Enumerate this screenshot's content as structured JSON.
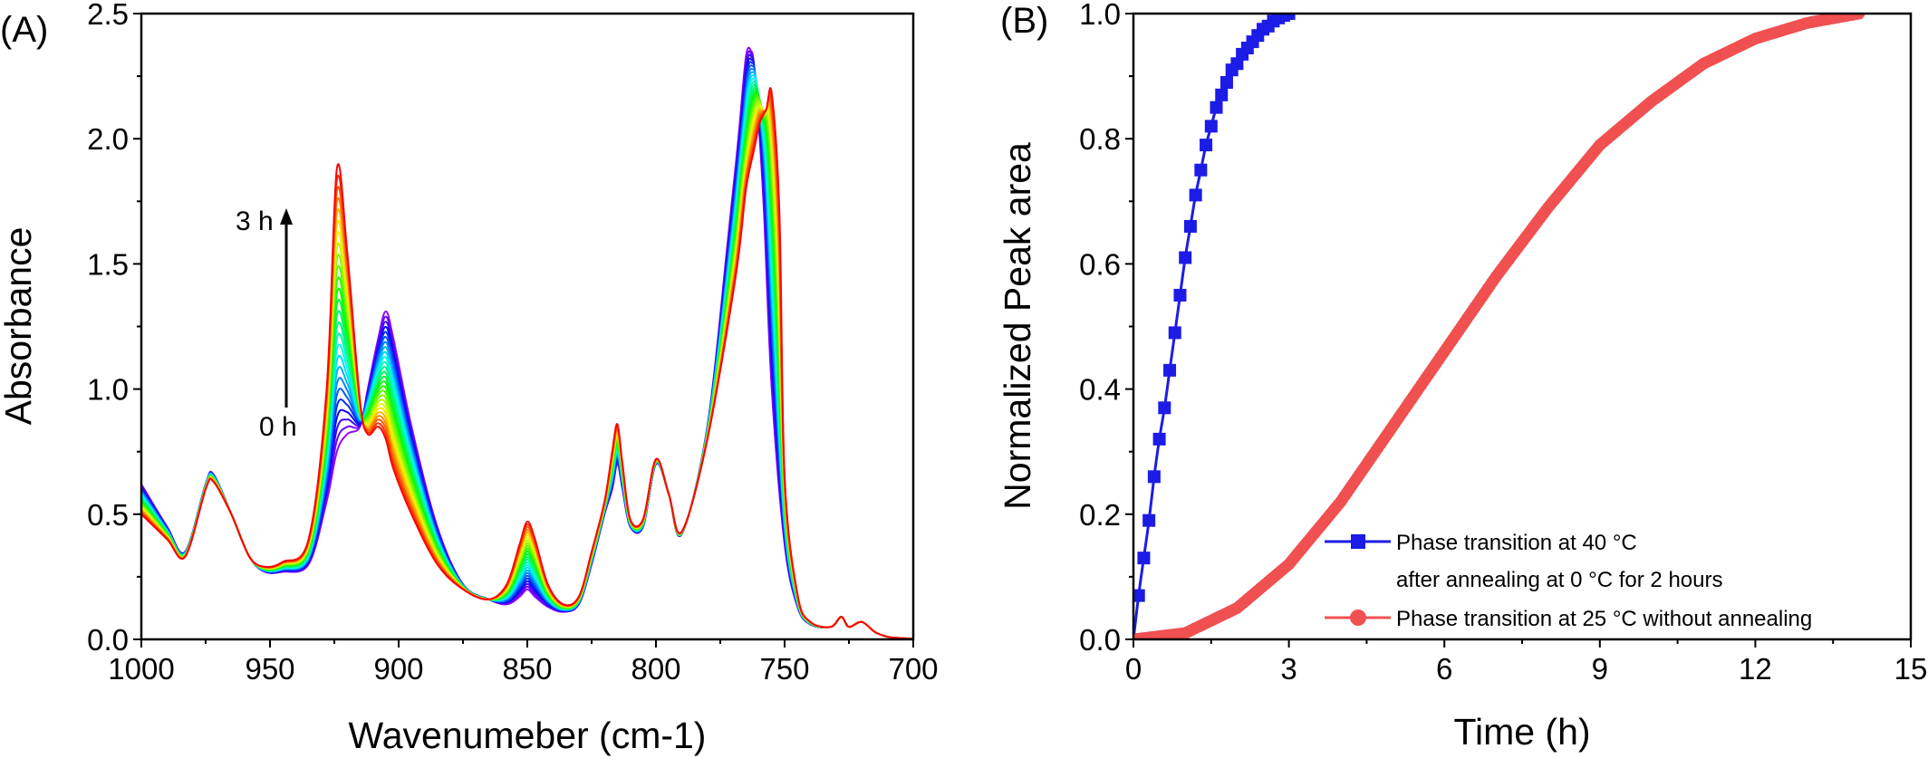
{
  "chart_data": [
    {
      "panel": "(A)",
      "type": "line",
      "xlabel": "Wavenumeber (cm-1)",
      "ylabel": "Absorbance",
      "xlim": [
        1000,
        700
      ],
      "ylim": [
        0,
        2.5
      ],
      "x_reversed": true,
      "xticks": [
        "1000",
        "950",
        "900",
        "850",
        "800",
        "750",
        "700"
      ],
      "yticks": [
        "0.0",
        "0.5",
        "1.0",
        "1.5",
        "2.0",
        "2.5"
      ],
      "annotations": {
        "arrow_top": "3 h",
        "arrow_bottom": "0 h"
      },
      "series_count": 26,
      "color_order": "purple (0 h) to red (3 h)",
      "start_spectrum": {
        "x": [
          1000,
          990,
          983,
          975,
          972,
          965,
          958,
          952,
          945,
          935,
          928,
          924,
          920,
          915,
          912,
          908,
          905,
          902,
          895,
          885,
          875,
          865,
          858,
          853,
          850,
          847,
          842,
          836,
          830,
          825,
          820,
          817,
          815,
          813,
          810,
          805,
          800,
          795,
          790,
          780,
          772,
          768,
          765,
          763,
          762,
          760,
          758,
          755,
          750,
          745,
          740,
          732,
          728,
          725,
          720,
          715,
          710,
          705,
          700
        ],
        "y": [
          0.62,
          0.45,
          0.35,
          0.62,
          0.66,
          0.5,
          0.33,
          0.27,
          0.27,
          0.3,
          0.55,
          0.75,
          0.82,
          0.85,
          1.0,
          1.2,
          1.31,
          1.2,
          0.85,
          0.45,
          0.22,
          0.16,
          0.14,
          0.17,
          0.2,
          0.17,
          0.13,
          0.11,
          0.14,
          0.3,
          0.5,
          0.6,
          0.7,
          0.6,
          0.45,
          0.45,
          0.7,
          0.58,
          0.42,
          0.85,
          1.6,
          2.0,
          2.33,
          2.35,
          2.3,
          2.05,
          1.7,
          1.0,
          0.38,
          0.13,
          0.06,
          0.05,
          0.09,
          0.05,
          0.07,
          0.03,
          0.01,
          0.005,
          0.003
        ]
      },
      "end_spectrum": {
        "x": [
          1000,
          990,
          983,
          975,
          972,
          965,
          958,
          952,
          945,
          935,
          928,
          924,
          920,
          915,
          912,
          908,
          905,
          902,
          895,
          885,
          875,
          865,
          858,
          853,
          850,
          847,
          842,
          836,
          830,
          825,
          820,
          817,
          815,
          813,
          810,
          805,
          800,
          795,
          790,
          780,
          772,
          768,
          765,
          763,
          762,
          760,
          758,
          755,
          750,
          745,
          740,
          732,
          728,
          725,
          720,
          715,
          710,
          705,
          700
        ],
        "y": [
          0.5,
          0.4,
          0.33,
          0.6,
          0.63,
          0.5,
          0.33,
          0.29,
          0.31,
          0.4,
          1.0,
          1.88,
          1.55,
          0.95,
          0.82,
          0.85,
          0.8,
          0.68,
          0.5,
          0.3,
          0.2,
          0.16,
          0.22,
          0.38,
          0.47,
          0.4,
          0.22,
          0.14,
          0.17,
          0.35,
          0.55,
          0.75,
          0.86,
          0.7,
          0.48,
          0.48,
          0.72,
          0.58,
          0.43,
          0.8,
          1.45,
          1.8,
          1.95,
          2.05,
          2.08,
          2.12,
          2.18,
          1.7,
          0.65,
          0.18,
          0.07,
          0.05,
          0.09,
          0.05,
          0.07,
          0.03,
          0.01,
          0.005,
          0.003
        ]
      }
    },
    {
      "panel": "(B)",
      "type": "scatter",
      "xlabel": "Time (h)",
      "ylabel": "Normalized Peak area",
      "xlim": [
        0,
        15
      ],
      "ylim": [
        0,
        1.0
      ],
      "xticks": [
        "0",
        "3",
        "6",
        "9",
        "12",
        "15"
      ],
      "yticks": [
        "0.0",
        "0.2",
        "0.4",
        "0.6",
        "0.8",
        "1.0"
      ],
      "legend_position": "bottom-right",
      "series": [
        {
          "name": "Phase transition at 40 °C after annealing at 0 °C for 2 hours",
          "legend_lines": [
            "Phase transition at 40 °C",
            "after annealing at 0 °C for 2 hours"
          ],
          "marker": "square",
          "color": "#1c1ce6",
          "x": [
            0,
            0.1,
            0.2,
            0.3,
            0.4,
            0.5,
            0.6,
            0.7,
            0.8,
            0.9,
            1.0,
            1.1,
            1.2,
            1.3,
            1.4,
            1.5,
            1.6,
            1.7,
            1.8,
            1.9,
            2.0,
            2.1,
            2.2,
            2.3,
            2.4,
            2.5,
            2.6,
            2.7,
            2.8,
            2.9,
            3.0
          ],
          "y": [
            0.0,
            0.07,
            0.13,
            0.19,
            0.26,
            0.32,
            0.37,
            0.43,
            0.49,
            0.55,
            0.61,
            0.66,
            0.71,
            0.75,
            0.79,
            0.82,
            0.85,
            0.87,
            0.89,
            0.91,
            0.92,
            0.935,
            0.945,
            0.955,
            0.965,
            0.975,
            0.98,
            0.988,
            0.993,
            0.997,
            1.0
          ]
        },
        {
          "name": "Phase transition at 25 °C without annealing",
          "legend_lines": [
            "Phase transition at 25 °C without annealing"
          ],
          "marker": "circle",
          "color": "#f05050",
          "x": [
            0,
            1,
            2,
            3,
            4,
            5,
            6,
            7,
            8,
            9,
            10,
            11,
            12,
            13,
            14
          ],
          "y": [
            0.0,
            0.01,
            0.05,
            0.12,
            0.22,
            0.34,
            0.46,
            0.58,
            0.69,
            0.79,
            0.86,
            0.92,
            0.96,
            0.985,
            1.0
          ]
        }
      ]
    }
  ]
}
